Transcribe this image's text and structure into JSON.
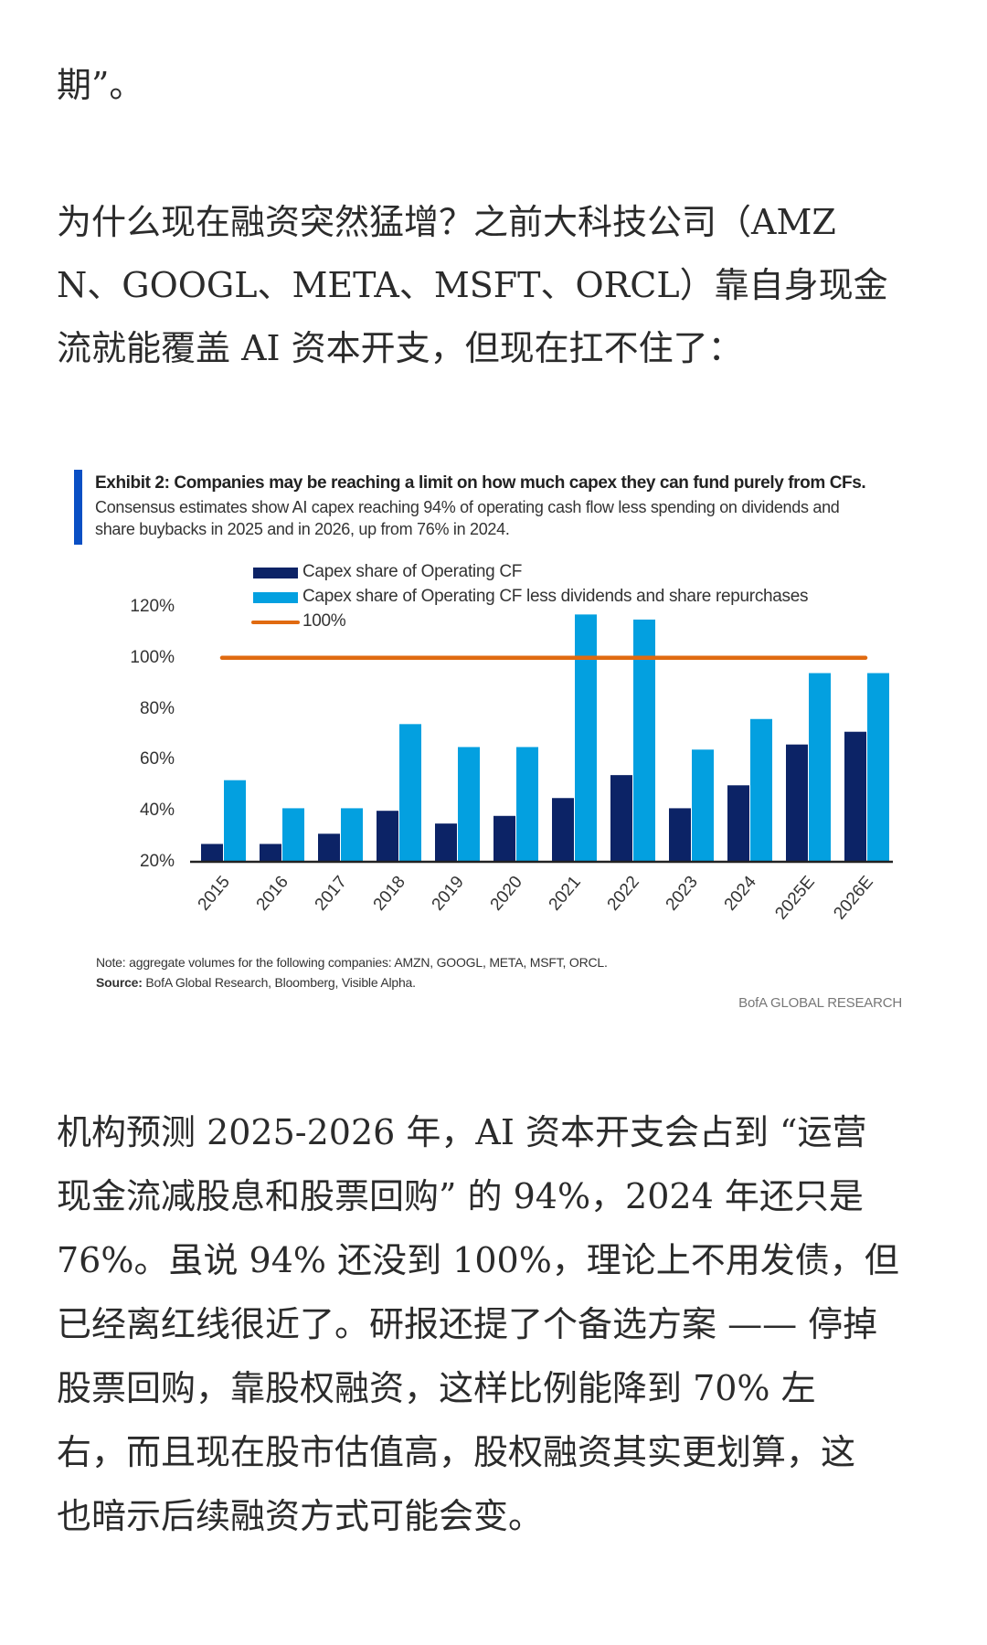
{
  "article": {
    "intro_line": "期”。",
    "para2": [
      "为什么现在融资突然猛增？之前大科技公司（AMZ",
      "N、GOOGL、META、MSFT、ORCL）靠自身现金",
      "流就能覆盖 AI 资本开支，但现在扛不住了："
    ],
    "para3": [
      "机构预测 2025-2026 年，AI 资本开支会占到 “运营",
      "现金流减股息和股票回购” 的 94%，2024 年还只是",
      "76%。虽说 94% 还没到 100%，理论上不用发债，但",
      "已经离红线很近了。研报还提了个备选方案 —— 停掉",
      "股票回购，靠股权融资，这样比例能降到 70% 左",
      "右，而且现在股市估值高，股权融资其实更划算，这",
      "也暗示后续融资方式可能会变。"
    ]
  },
  "chart_data": {
    "type": "bar",
    "title": "Exhibit 2: Companies may be reaching a limit on how much capex they can fund purely from CFs.",
    "subtitle": [
      "Consensus estimates show AI capex reaching 94% of operating cash flow less spending on dividends and",
      "share buybacks in 2025 and in 2026, up from 76% in 2024."
    ],
    "categories": [
      "2015",
      "2016",
      "2017",
      "2018",
      "2019",
      "2020",
      "2021",
      "2022",
      "2023",
      "2024",
      "2025E",
      "2026E"
    ],
    "series": [
      {
        "name": "Capex share of Operating CF",
        "color": "#0c2366",
        "values": [
          27,
          27,
          31,
          40,
          35,
          38,
          45,
          54,
          41,
          50,
          66,
          71
        ]
      },
      {
        "name": "Capex share of Operating CF less dividends and share repurchases",
        "color": "#03a0e0",
        "values": [
          52,
          41,
          41,
          74,
          65,
          65,
          117,
          115,
          64,
          76,
          94,
          94
        ]
      }
    ],
    "reference_line": {
      "name": "100%",
      "value": 100,
      "color": "#e06a10"
    },
    "yticks": [
      "120%",
      "100%",
      "80%",
      "60%",
      "40%",
      "20%"
    ],
    "ylim": [
      20,
      120
    ],
    "legend_position": "top",
    "grid": false,
    "note": "Note: aggregate volumes for the following companies: AMZN, GOOGL, META, MSFT, ORCL.",
    "source_label": "Source:",
    "source": " BofA Global Research, Bloomberg, Visible Alpha.",
    "brand": "BofA GLOBAL RESEARCH"
  }
}
